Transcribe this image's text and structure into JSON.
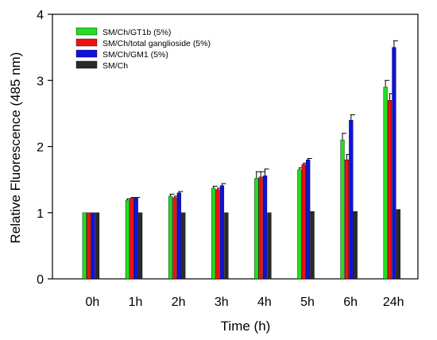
{
  "chart_data": {
    "type": "bar",
    "xlabel": "Time (h)",
    "ylabel": "Relative Fluorescence (485 nm)",
    "ylim": [
      0,
      4
    ],
    "yticks": [
      "0",
      "1",
      "2",
      "3",
      "4"
    ],
    "categories": [
      "0h",
      "1h",
      "2h",
      "3h",
      "4h",
      "5h",
      "6h",
      "24h"
    ],
    "legend_position": "top-left",
    "grid": false,
    "series": [
      {
        "name": "SM/Ch/GT1b (5%)",
        "color": "#22dd22",
        "values": [
          1.0,
          1.19,
          1.25,
          1.37,
          1.52,
          1.65,
          2.1,
          2.9
        ],
        "errors": [
          0,
          0.02,
          0.03,
          0.03,
          0.1,
          0.03,
          0.1,
          0.1
        ]
      },
      {
        "name": "SM/Ch/total ganglioside (5%)",
        "color": "#ee1111",
        "values": [
          1.0,
          1.22,
          1.23,
          1.35,
          1.54,
          1.73,
          1.8,
          2.7
        ],
        "errors": [
          0,
          0.01,
          0.02,
          0.02,
          0.08,
          0.02,
          0.08,
          0.1
        ]
      },
      {
        "name": "SM/Ch/GM1 (5%)",
        "color": "#1111dd",
        "values": [
          1.0,
          1.22,
          1.3,
          1.41,
          1.56,
          1.8,
          2.4,
          3.5
        ],
        "errors": [
          0,
          0.01,
          0.02,
          0.03,
          0.1,
          0.02,
          0.08,
          0.1
        ]
      },
      {
        "name": "SM/Ch",
        "color": "#2a2a2a",
        "values": [
          1.0,
          1.0,
          1.0,
          1.0,
          1.0,
          1.02,
          1.02,
          1.05
        ],
        "errors": [
          0,
          0,
          0,
          0,
          0,
          0,
          0,
          0
        ]
      }
    ]
  }
}
